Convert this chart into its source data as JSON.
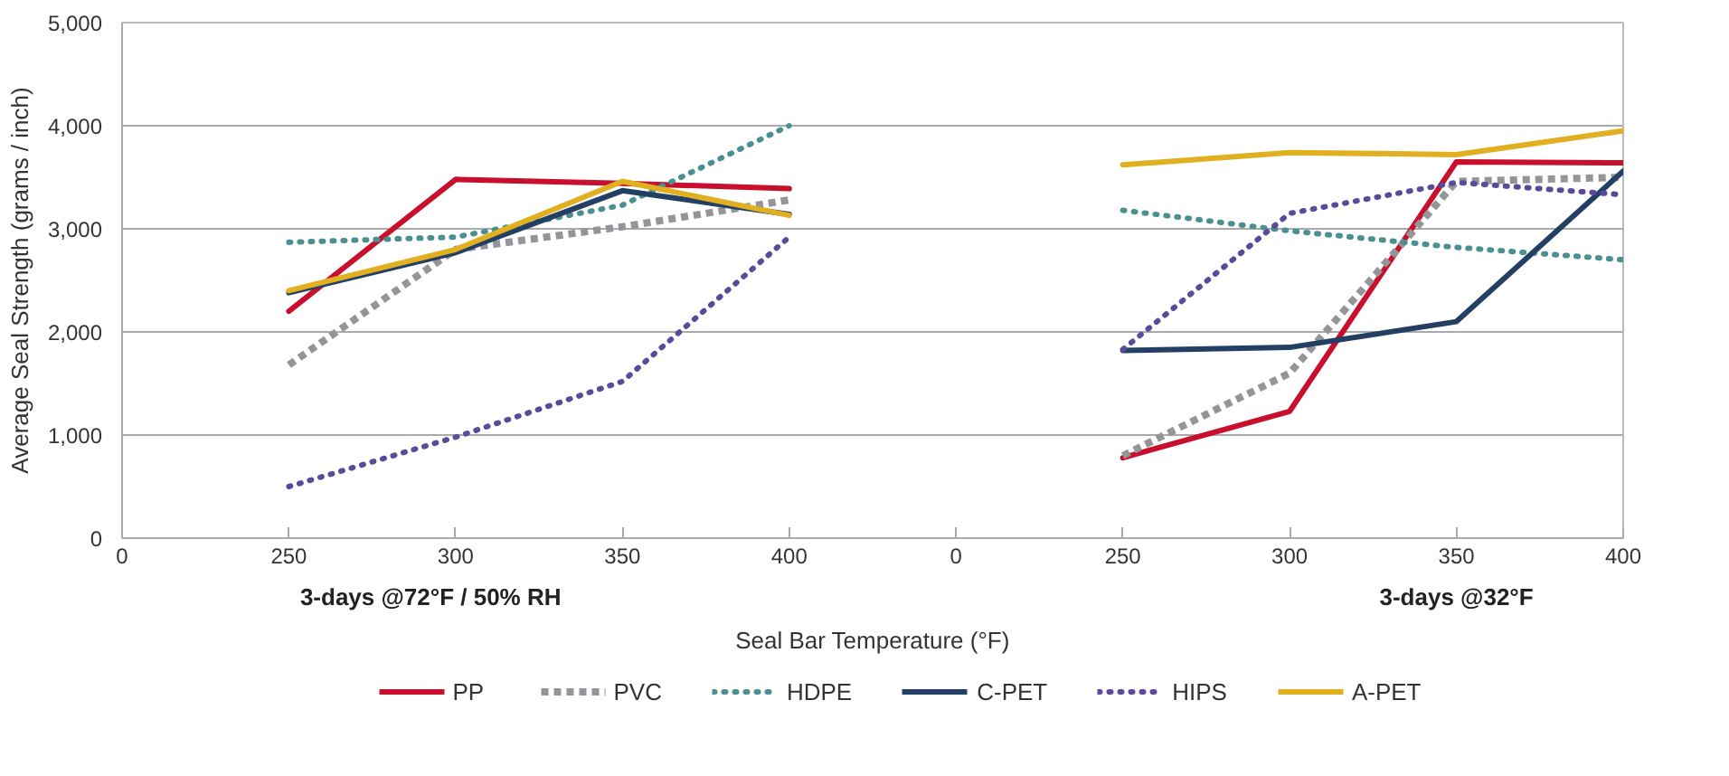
{
  "chart_data": {
    "type": "line",
    "xlabel": "Seal Bar Temperature (°F)",
    "ylabel": "Average Seal Strength (grams / inch)",
    "categories": [
      "0",
      "250",
      "300",
      "350",
      "400",
      "0",
      "250",
      "300",
      "350",
      "400"
    ],
    "ylim": [
      0,
      5000
    ],
    "yticks": [
      {
        "value": 0,
        "label": "0"
      },
      {
        "value": 1000,
        "label": "1,000"
      },
      {
        "value": 2000,
        "label": "2,000"
      },
      {
        "value": 3000,
        "label": "3,000"
      },
      {
        "value": 4000,
        "label": "4,000"
      },
      {
        "value": 5000,
        "label": "5,000"
      }
    ],
    "grid": "y",
    "legend": "bottom",
    "marker": "none",
    "annotations": [
      "3-days @72°F / 50% RH",
      "3-days @32°F"
    ],
    "series": [
      {
        "name": "PP",
        "color": "#c8102e",
        "line_style": "solid",
        "values": [
          null,
          2200,
          3480,
          3440,
          3390,
          null,
          780,
          1230,
          3650,
          3640
        ]
      },
      {
        "name": "PVC",
        "color": "#939598",
        "line_style": "dashed",
        "values": [
          null,
          1680,
          2800,
          3020,
          3280,
          null,
          800,
          1600,
          3460,
          3500
        ]
      },
      {
        "name": "HDPE",
        "color": "#4a9091",
        "line_style": "dotted",
        "values": [
          null,
          2870,
          2920,
          3230,
          4000,
          null,
          3180,
          2980,
          2820,
          2700
        ]
      },
      {
        "name": "C-PET",
        "color": "#243f64",
        "line_style": "solid",
        "values": [
          null,
          2380,
          2770,
          3370,
          3140,
          null,
          1820,
          1850,
          2100,
          3560
        ]
      },
      {
        "name": "HIPS",
        "color": "#5b4a9a",
        "line_style": "dotted",
        "values": [
          null,
          500,
          980,
          1520,
          2920,
          null,
          1830,
          3150,
          3450,
          3330
        ]
      },
      {
        "name": "A-PET",
        "color": "#e0b020",
        "line_style": "solid",
        "values": [
          null,
          2400,
          2800,
          3460,
          3130,
          null,
          3620,
          3740,
          3720,
          3950
        ]
      }
    ]
  }
}
